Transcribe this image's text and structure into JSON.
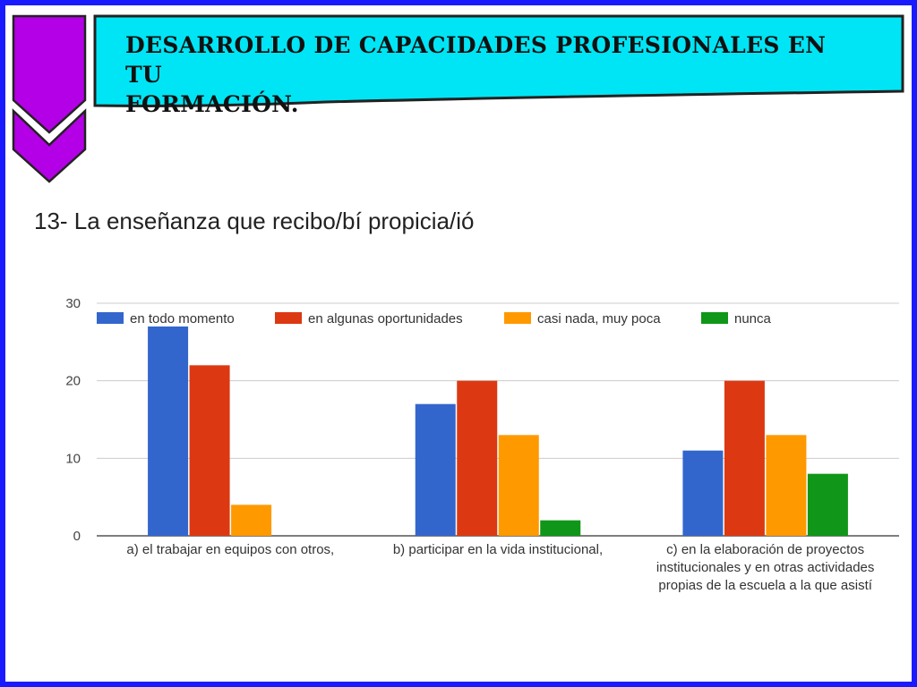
{
  "banner": {
    "title_line1": "DESARROLLO DE CAPACIDADES PROFESIONALES EN TU",
    "title_line2": "FORMACIÓN."
  },
  "question": "13- La enseñanza que recibo/bí propicia/ió",
  "colors": {
    "frame": "#1a1aff",
    "banner_fill": "#00e5f5",
    "chevron_fill": "#b400e6",
    "series": [
      "#3366cc",
      "#dc3912",
      "#ff9900",
      "#109618"
    ]
  },
  "icons": {
    "decoration": "purple-double-chevron-icon"
  },
  "chart_data": {
    "type": "bar",
    "categories": [
      [
        "a) el trabajar en equipos con otros,"
      ],
      [
        "b) participar en la vida institucional,"
      ],
      [
        "c) en la elaboración de proyectos",
        "institucionales y en otras actividades",
        "propias de la escuela a la que asistí"
      ]
    ],
    "series": [
      {
        "name": "en todo momento",
        "values": [
          27,
          17,
          11
        ]
      },
      {
        "name": "en algunas oportunidades",
        "values": [
          22,
          20,
          20
        ]
      },
      {
        "name": "casi nada, muy poca",
        "values": [
          4,
          13,
          13
        ]
      },
      {
        "name": "nunca",
        "values": [
          0,
          2,
          8
        ]
      }
    ],
    "yticks": [
      0,
      10,
      20,
      30
    ],
    "ylim": [
      0,
      30
    ],
    "grid": true,
    "legend_position": "top"
  }
}
